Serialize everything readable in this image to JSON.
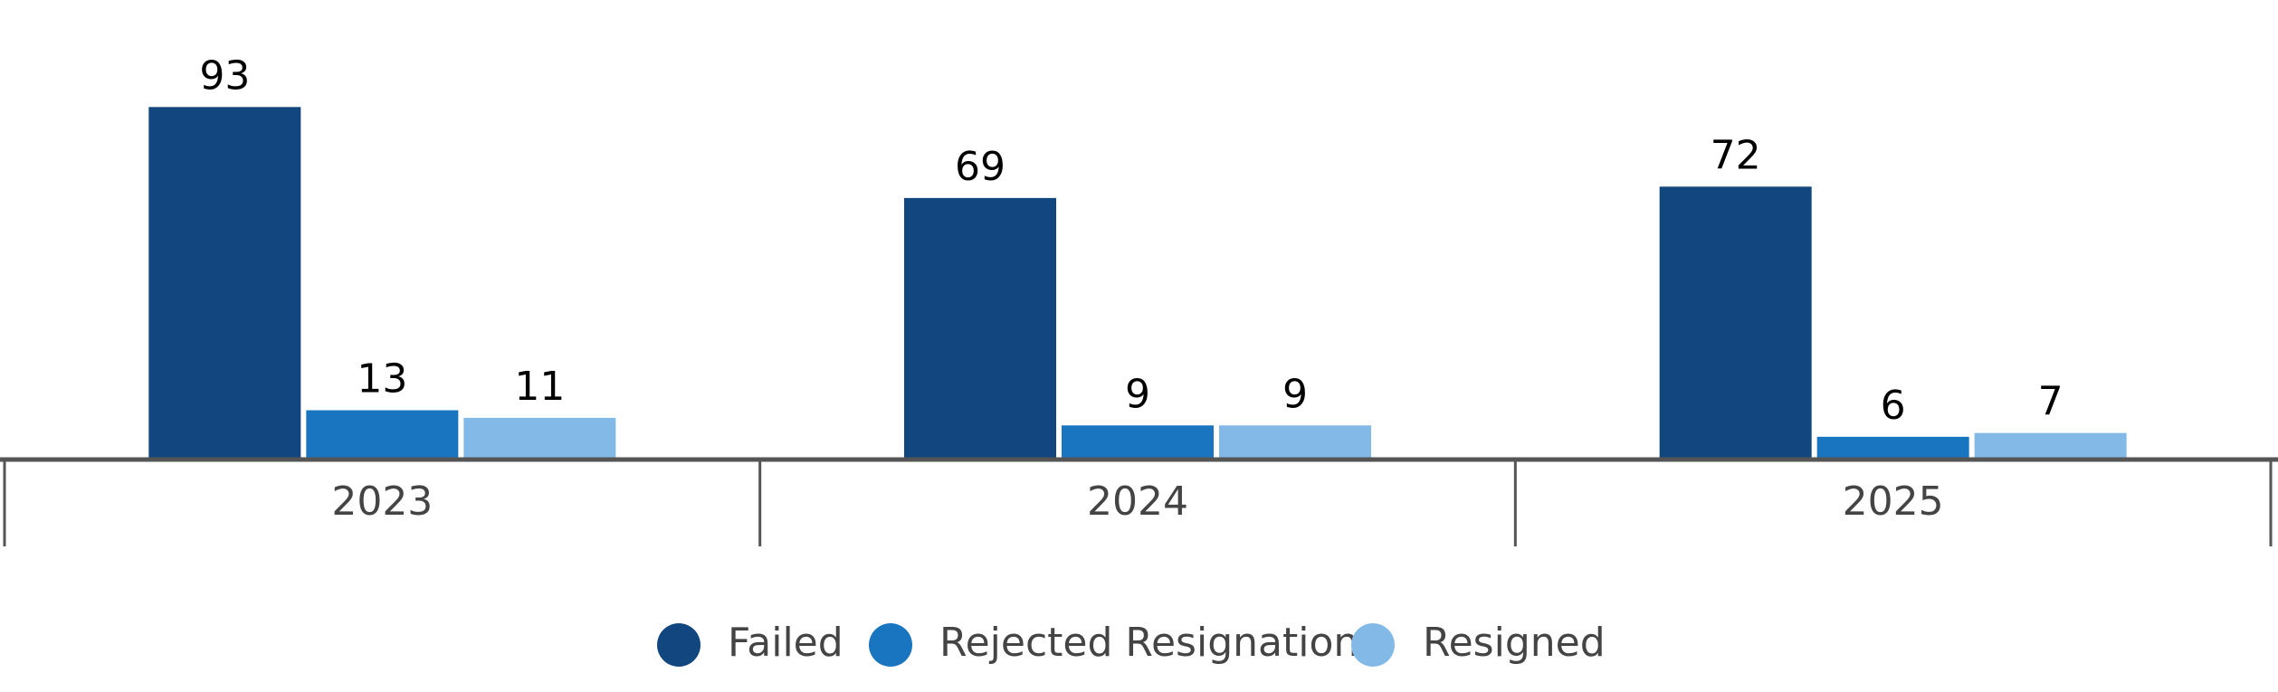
{
  "chart_data": {
    "type": "bar",
    "categories": [
      "2023",
      "2024",
      "2025"
    ],
    "series": [
      {
        "name": "Failed",
        "color": "#12467e",
        "values": [
          93,
          69,
          72
        ]
      },
      {
        "name": "Rejected Resignation",
        "color": "#1a75c0",
        "values": [
          13,
          9,
          6
        ]
      },
      {
        "name": "Resigned",
        "color": "#82b9e6",
        "values": [
          11,
          9,
          7
        ]
      }
    ],
    "legend": "bottom"
  }
}
